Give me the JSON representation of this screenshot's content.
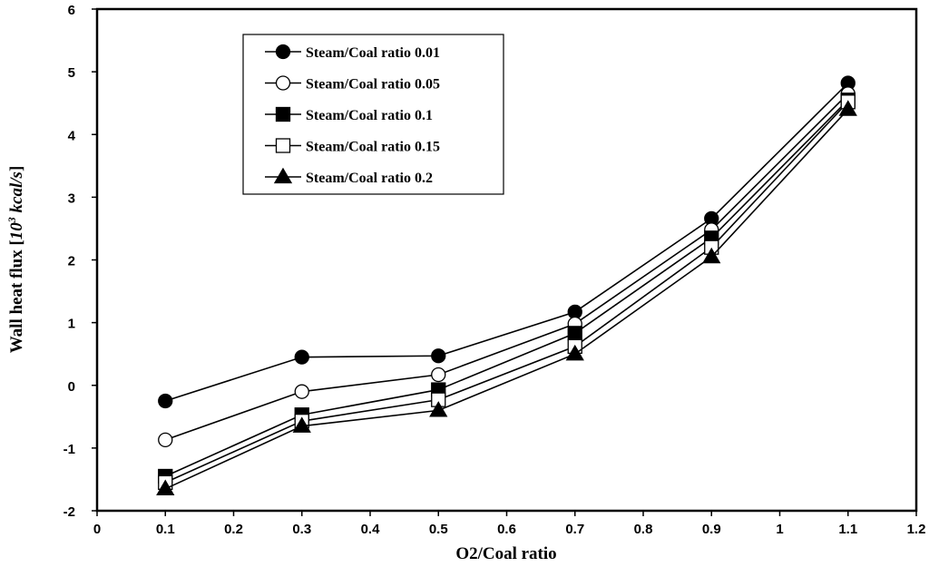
{
  "chart_data": {
    "type": "line",
    "title": "",
    "xlabel": "O2/Coal ratio",
    "ylabel_prefix": "Wall heat flux [",
    "ylabel_unit": "10",
    "ylabel_exp": "3",
    "ylabel_unit_tail": " kcal/s",
    "ylabel_suffix": "]",
    "xlim": [
      0,
      1.2
    ],
    "ylim": [
      -2,
      6
    ],
    "xticks": [
      "0",
      "0.1",
      "0.2",
      "0.3",
      "0.4",
      "0.5",
      "0.6",
      "0.7",
      "0.8",
      "0.9",
      "1",
      "1.1",
      "1.2"
    ],
    "yticks": [
      "-2",
      "-1",
      "0",
      "1",
      "2",
      "3",
      "4",
      "5",
      "6"
    ],
    "grid": false,
    "legend_position": "top-left",
    "x": [
      0.1,
      0.3,
      0.5,
      0.7,
      0.9,
      1.1
    ],
    "series": [
      {
        "name": "Steam/Coal ratio 0.01",
        "marker": "filled-circle",
        "values": [
          -0.25,
          0.45,
          0.47,
          1.17,
          2.66,
          4.82
        ]
      },
      {
        "name": "Steam/Coal ratio 0.05",
        "marker": "open-circle",
        "values": [
          -0.87,
          -0.1,
          0.17,
          0.98,
          2.48,
          4.65
        ]
      },
      {
        "name": "Steam/Coal ratio 0.1",
        "marker": "filled-square",
        "values": [
          -1.45,
          -0.47,
          -0.07,
          0.83,
          2.35,
          4.55
        ]
      },
      {
        "name": "Steam/Coal ratio 0.15",
        "marker": "open-square",
        "values": [
          -1.55,
          -0.57,
          -0.23,
          0.62,
          2.2,
          4.52
        ]
      },
      {
        "name": "Steam/Coal ratio 0.2",
        "marker": "filled-triangle",
        "values": [
          -1.65,
          -0.65,
          -0.4,
          0.5,
          2.05,
          4.4
        ]
      }
    ]
  },
  "colors": {
    "ink": "#000000",
    "background": "#ffffff"
  }
}
